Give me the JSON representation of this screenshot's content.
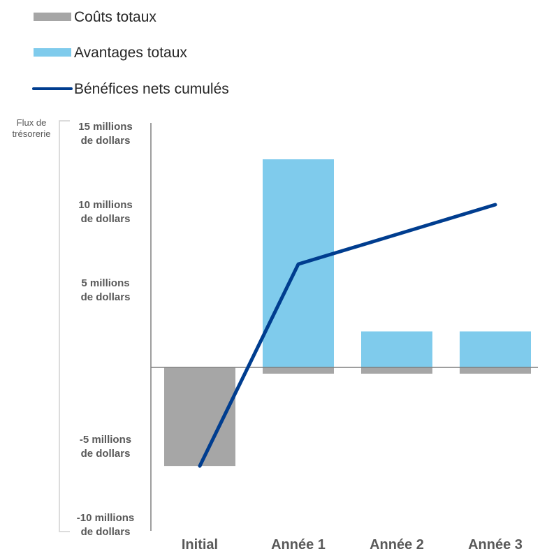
{
  "chart_data": {
    "type": "bar",
    "categories": [
      "Initial",
      "Année 1",
      "Année 2",
      "Année 3"
    ],
    "series": [
      {
        "name": "Coûts totaux",
        "kind": "bar",
        "color": "#a6a6a6",
        "values": [
          -6.3,
          -0.4,
          -0.4,
          -0.4
        ]
      },
      {
        "name": "Avantages totaux",
        "kind": "bar",
        "color": "#7fcbec",
        "values": [
          0,
          13.3,
          2.3,
          2.3
        ]
      },
      {
        "name": "Bénéfices nets cumulés",
        "kind": "line",
        "color": "#003d8f",
        "values": [
          -6.3,
          6.6,
          8.5,
          10.4
        ]
      }
    ],
    "ylabel": [
      "Flux de",
      "trésorerie"
    ],
    "ylim": [
      -10,
      15
    ],
    "yticks": [
      {
        "value": 15,
        "label": [
          "15 millions",
          "de dollars"
        ]
      },
      {
        "value": 10,
        "label": [
          "10 millions",
          "de dollars"
        ]
      },
      {
        "value": 5,
        "label": [
          "5 millions",
          "de dollars"
        ]
      },
      {
        "value": -5,
        "label": [
          "-5 millions",
          "de dollars"
        ]
      },
      {
        "value": -10,
        "label": [
          "-10 millions",
          "de dollars"
        ]
      }
    ],
    "grid": false,
    "legend_position": "top-left"
  }
}
